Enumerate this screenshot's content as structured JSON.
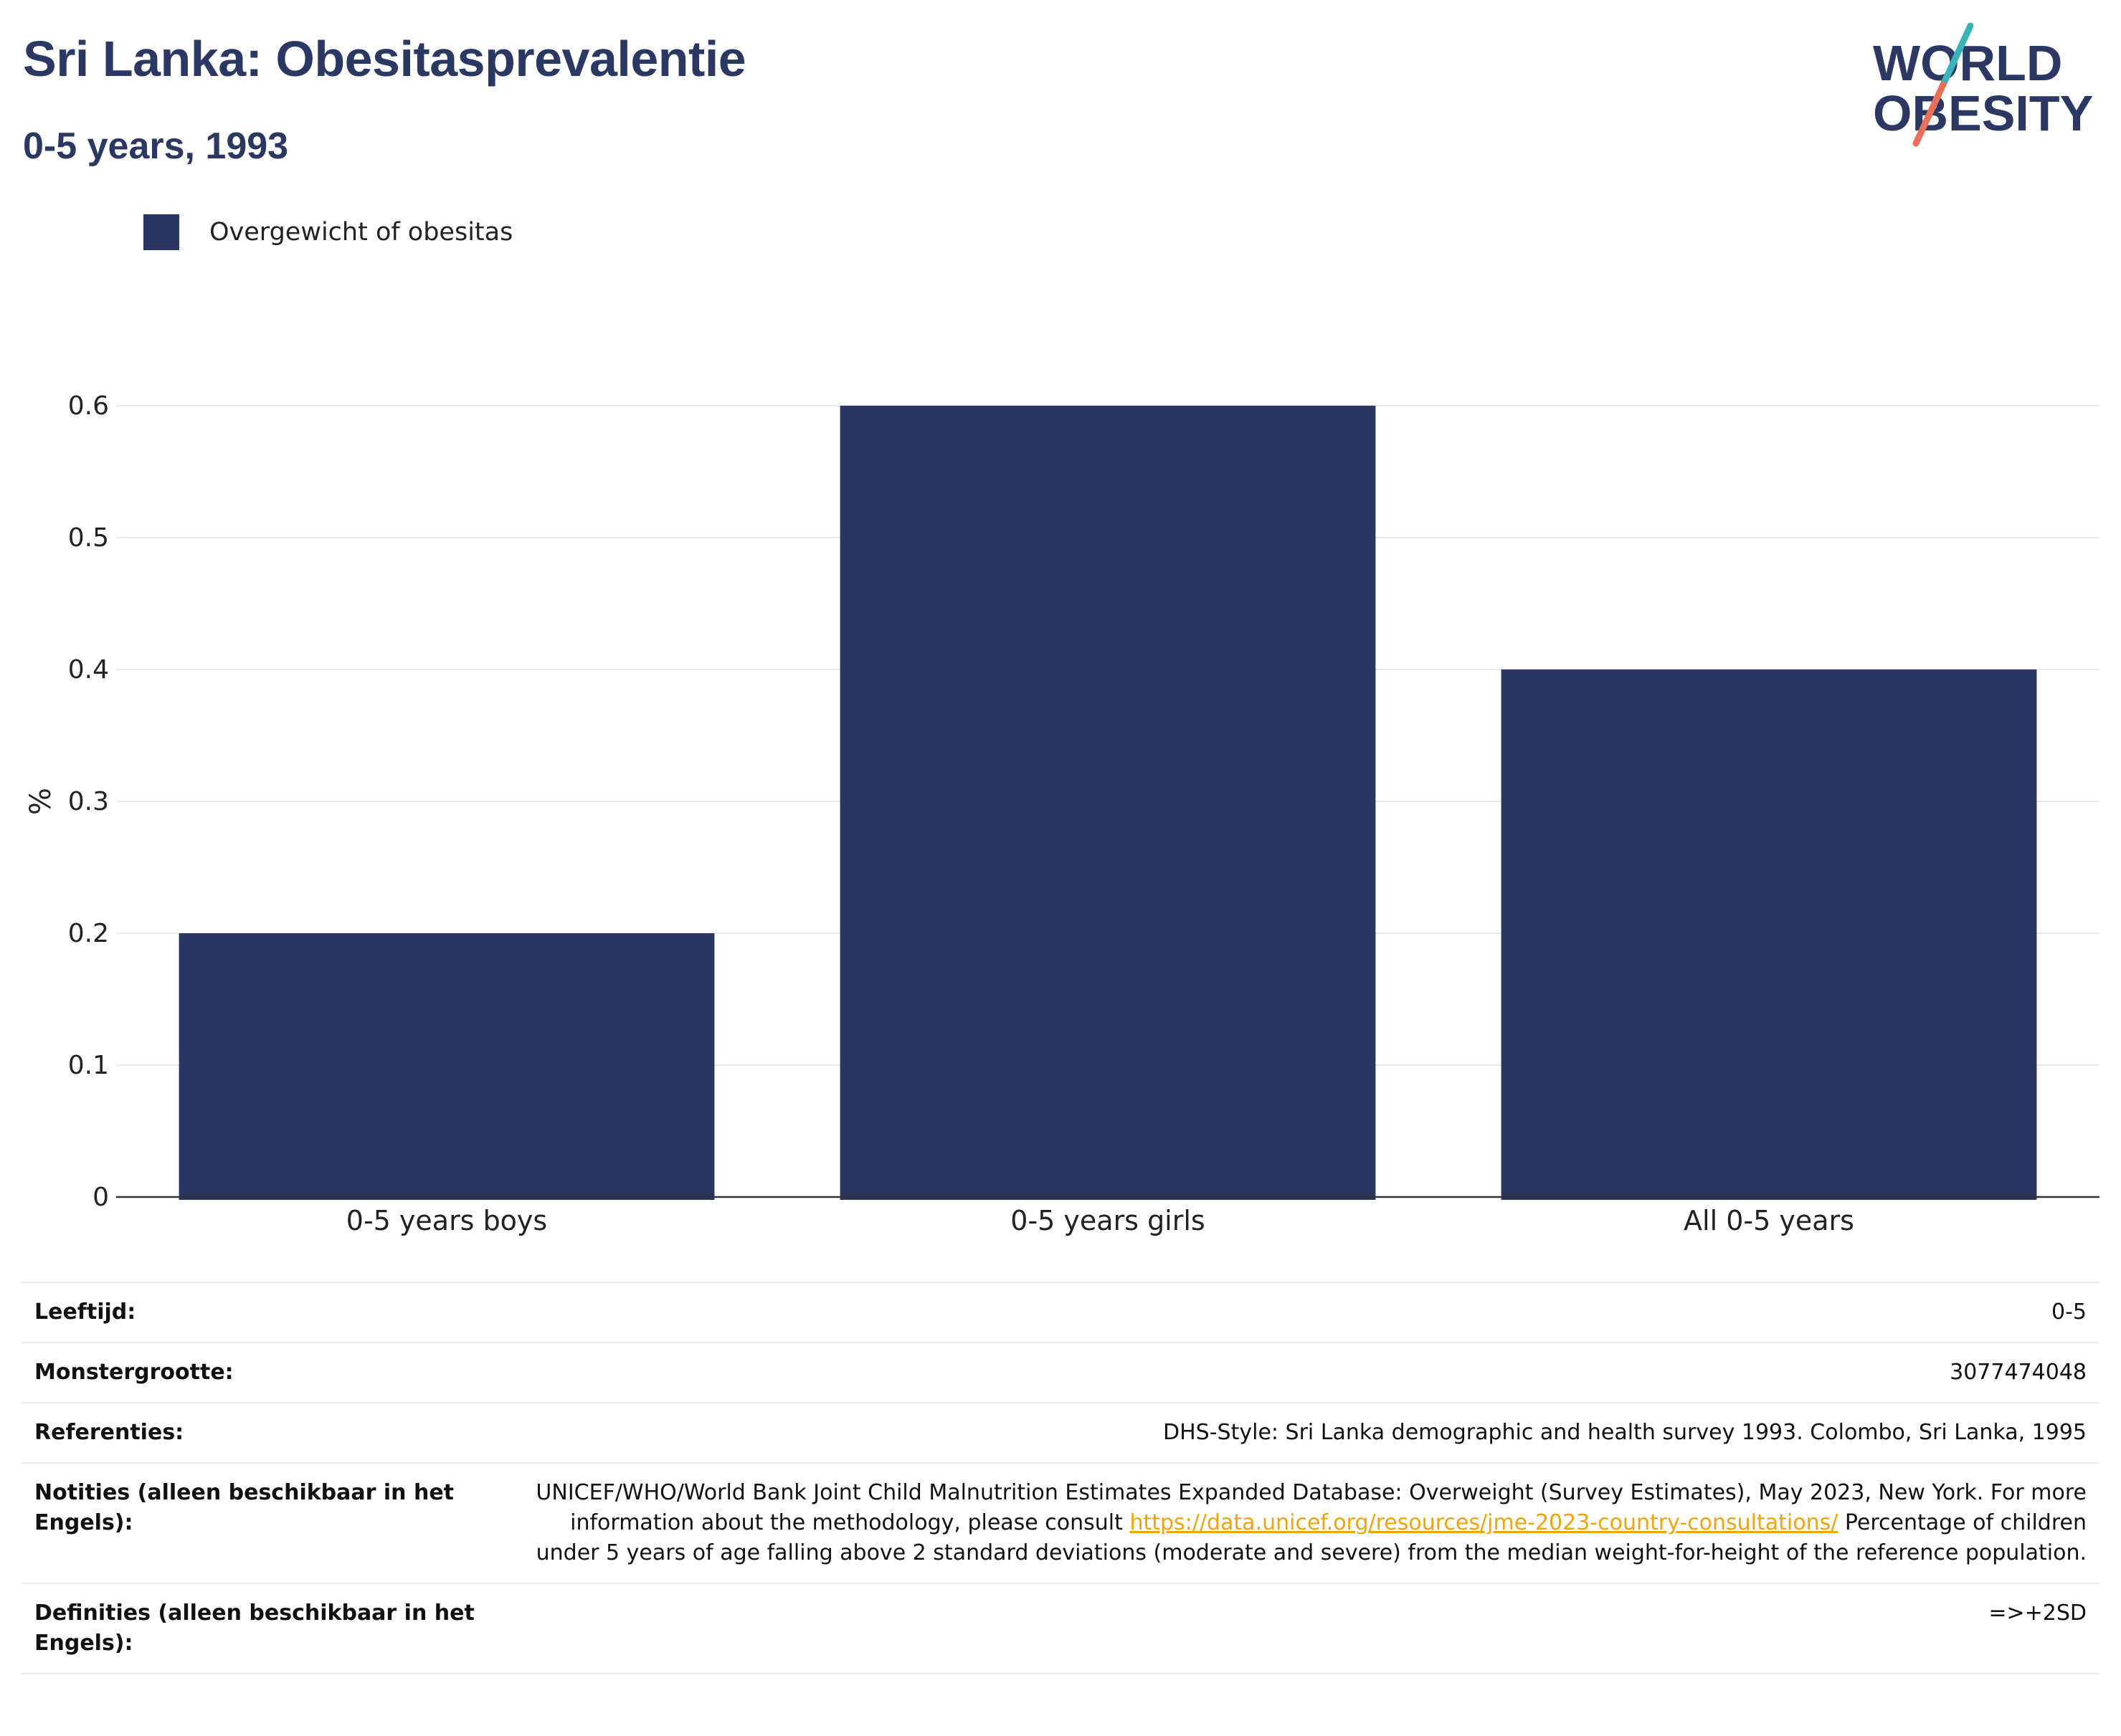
{
  "header": {
    "title": "Sri Lanka: Obesitasprevalentie",
    "subtitle": "0-5 years, 1993"
  },
  "logo": {
    "line1": "WORLD",
    "line2": "OBESITY",
    "colors": {
      "text": "#2b3863",
      "slash_teal": "#3bb3b9",
      "slash_coral": "#e8705b"
    }
  },
  "legend": {
    "items": [
      {
        "label": "Overgewicht of obesitas",
        "color": "#2a3662"
      }
    ]
  },
  "chart_data": {
    "type": "bar",
    "categories": [
      "0-5 years boys",
      "0-5 years girls",
      "All 0-5 years"
    ],
    "series": [
      {
        "name": "Overgewicht of obesitas",
        "values": [
          0.2,
          0.6,
          0.4
        ],
        "color": "#2a3662"
      }
    ],
    "ylabel": "%",
    "ylim": [
      0,
      0.6
    ],
    "yticks": [
      "0",
      "0.1",
      "0.2",
      "0.3",
      "0.4",
      "0.5",
      "0.6"
    ],
    "ytick_values": [
      0,
      0.1,
      0.2,
      0.3,
      0.4,
      0.5,
      0.6
    ],
    "grid": true,
    "legend_position": "top-left"
  },
  "info": {
    "rows": [
      {
        "key": "Leeftijd:",
        "value": "0-5"
      },
      {
        "key": "Monstergrootte:",
        "value": "3077474048"
      },
      {
        "key": "Referenties:",
        "value": "DHS-Style: Sri Lanka demographic and health survey 1993. Colombo, Sri Lanka, 1995"
      },
      {
        "key": "Notities (alleen beschikbaar in het Engels):",
        "value_before": "UNICEF/WHO/World Bank Joint Child Malnutrition Estimates Expanded Database: Overweight (Survey Estimates), May 2023, New York. For more information about the methodology, please consult ",
        "link": "https://data.unicef.org/resources/jme-2023-country-consultations/",
        "value_after": " Percentage of children under 5 years of age falling above 2 standard deviations (moderate and severe) from the median weight-for-height of the reference population."
      },
      {
        "key": "Definities (alleen beschikbaar in het Engels):",
        "value": "=>+2SD"
      }
    ]
  }
}
